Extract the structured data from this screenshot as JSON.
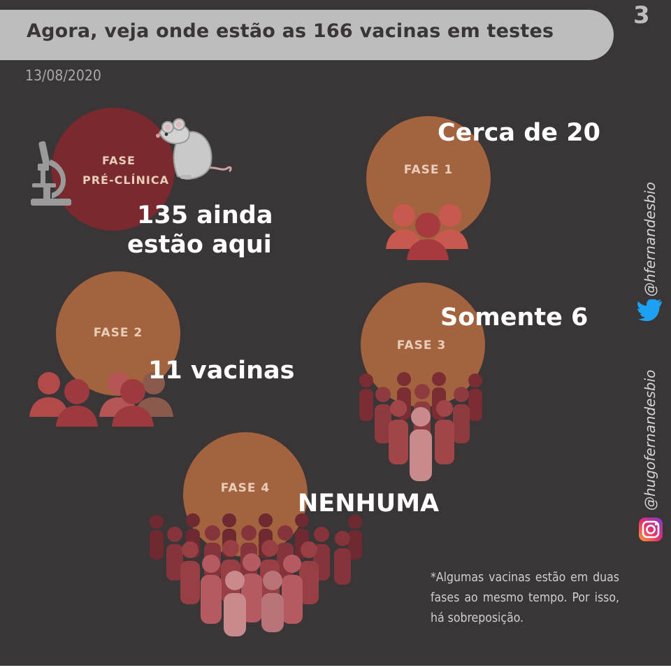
{
  "header": {
    "title": "Agora, veja onde estão as 166 vacinas em testes",
    "page_number": "3",
    "date": "13/08/2020"
  },
  "phases": {
    "preclinical": {
      "label_line1": "FASE",
      "label_line2": "PRÉ-CLÍNICA",
      "count_line1": "135 ainda",
      "count_line2": "estão aqui"
    },
    "phase1": {
      "label": "FASE 1",
      "count": "Cerca de 20"
    },
    "phase2": {
      "label": "FASE 2",
      "count": "11 vacinas"
    },
    "phase3": {
      "label": "FASE 3",
      "count": "Somente 6"
    },
    "phase4": {
      "label": "FASE 4",
      "count": "NENHUMA"
    }
  },
  "social": {
    "twitter": "@hfernandesbio",
    "instagram": "@hugofernandesbio"
  },
  "footnote": "*Algumas vacinas estão em duas fases ao mesmo tempo. Por isso, há sobreposição.",
  "colors": {
    "background": "#3a3536",
    "title_bar": "#bdbdbd",
    "preclinical_circle": "#7a2a2e",
    "phase_circle": "#a4633f",
    "crowd": "#8e3b40",
    "twitter": "#1da1f2"
  },
  "icons": [
    "microscope-icon",
    "mouse-icon",
    "twitter-icon",
    "instagram-icon",
    "crowd-icon"
  ]
}
